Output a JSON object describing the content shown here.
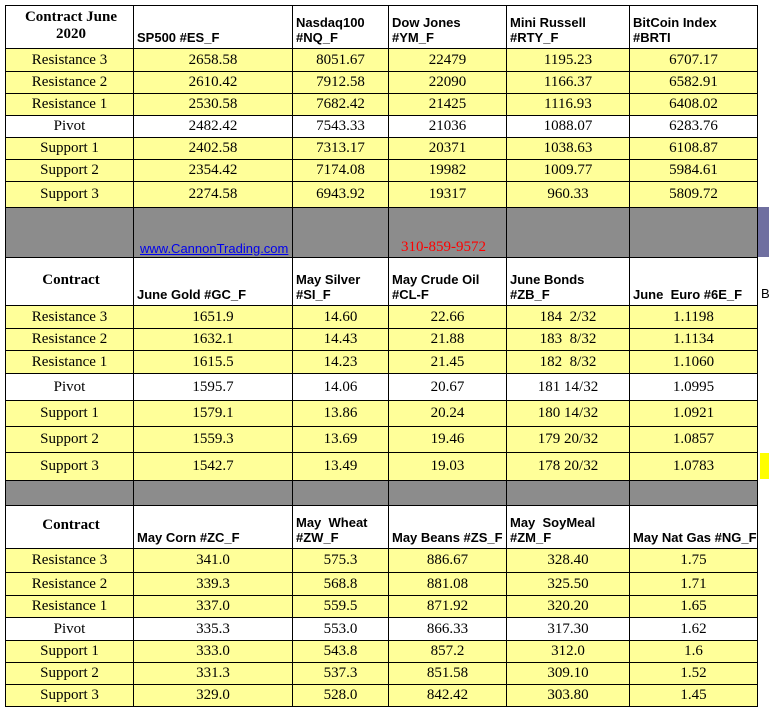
{
  "sections": [
    {
      "header": [
        [
          "Contract June",
          "2020"
        ],
        [
          "SP500 #ES_F"
        ],
        [
          "Nasdaq100",
          "#NQ_F"
        ],
        [
          "Dow Jones",
          "#YM_F"
        ],
        [
          "Mini Russell",
          "#RTY_F"
        ],
        [
          "BitCoin Index",
          "#BRTI"
        ]
      ],
      "rows": [
        [
          "Resistance 3",
          "2658.58",
          "8051.67",
          "22479",
          "1195.23",
          "6707.17"
        ],
        [
          "Resistance 2",
          "2610.42",
          "7912.58",
          "22090",
          "1166.37",
          "6582.91"
        ],
        [
          "Resistance 1",
          "2530.58",
          "7682.42",
          "21425",
          "1116.93",
          "6408.02"
        ],
        [
          "Pivot",
          "2482.42",
          "7543.33",
          "21036",
          "1088.07",
          "6283.76"
        ],
        [
          "Support 1",
          "2402.58",
          "7313.17",
          "20371",
          "1038.63",
          "6108.87"
        ],
        [
          "Support 2",
          "2354.42",
          "7174.08",
          "19982",
          "1009.77",
          "5984.61"
        ],
        [
          "Support 3",
          "2274.58",
          "6943.92",
          "19317",
          "960.33",
          "5809.72"
        ]
      ]
    },
    {
      "header": [
        [
          "Contract"
        ],
        [
          "June Gold #GC_F"
        ],
        [
          "May Silver",
          "#SI_F"
        ],
        [
          "May Crude Oil",
          "#CL-F"
        ],
        [
          "June Bonds",
          "#ZB_F"
        ],
        [
          "June  Euro #6E_F"
        ]
      ],
      "rows": [
        [
          "Resistance 3",
          "1651.9",
          "14.60",
          "22.66",
          "184  2/32",
          "1.1198"
        ],
        [
          "Resistance 2",
          "1632.1",
          "14.43",
          "21.88",
          "183  8/32",
          "1.1134"
        ],
        [
          "Resistance 1",
          "1615.5",
          "14.23",
          "21.45",
          "182  8/32",
          "1.1060"
        ],
        [
          "Pivot",
          "1595.7",
          "14.06",
          "20.67",
          "181 14/32",
          "1.0995"
        ],
        [
          "Support 1",
          "1579.1",
          "13.86",
          "20.24",
          "180 14/32",
          "1.0921"
        ],
        [
          "Support 2",
          "1559.3",
          "13.69",
          "19.46",
          "179 20/32",
          "1.0857"
        ],
        [
          "Support 3",
          "1542.7",
          "13.49",
          "19.03",
          "178 20/32",
          "1.0783"
        ]
      ]
    },
    {
      "header": [
        [
          "Contract"
        ],
        [
          "May Corn #ZC_F"
        ],
        [
          "May  Wheat",
          "#ZW_F"
        ],
        [
          "May Beans #ZS_F"
        ],
        [
          "May  SoyMeal",
          "#ZM_F"
        ],
        [
          "May Nat Gas #NG_F"
        ]
      ],
      "rows": [
        [
          "Resistance 3",
          "341.0",
          "575.3",
          "886.67",
          "328.40",
          "1.75"
        ],
        [
          "Resistance 2",
          "339.3",
          "568.8",
          "881.08",
          "325.50",
          "1.71"
        ],
        [
          "Resistance 1",
          "337.0",
          "559.5",
          "871.92",
          "320.20",
          "1.65"
        ],
        [
          "Pivot",
          "335.3",
          "553.0",
          "866.33",
          "317.30",
          "1.62"
        ],
        [
          "Support 1",
          "333.0",
          "543.8",
          "857.2",
          "312.0",
          "1.6"
        ],
        [
          "Support 2",
          "331.3",
          "537.3",
          "851.58",
          "309.10",
          "1.52"
        ],
        [
          "Support 3",
          "329.0",
          "528.0",
          "842.42",
          "303.80",
          "1.45"
        ]
      ]
    }
  ],
  "separator": {
    "link": "www.CannonTrading.com",
    "phone": "310-859-9572"
  },
  "overflow_text": "B"
}
